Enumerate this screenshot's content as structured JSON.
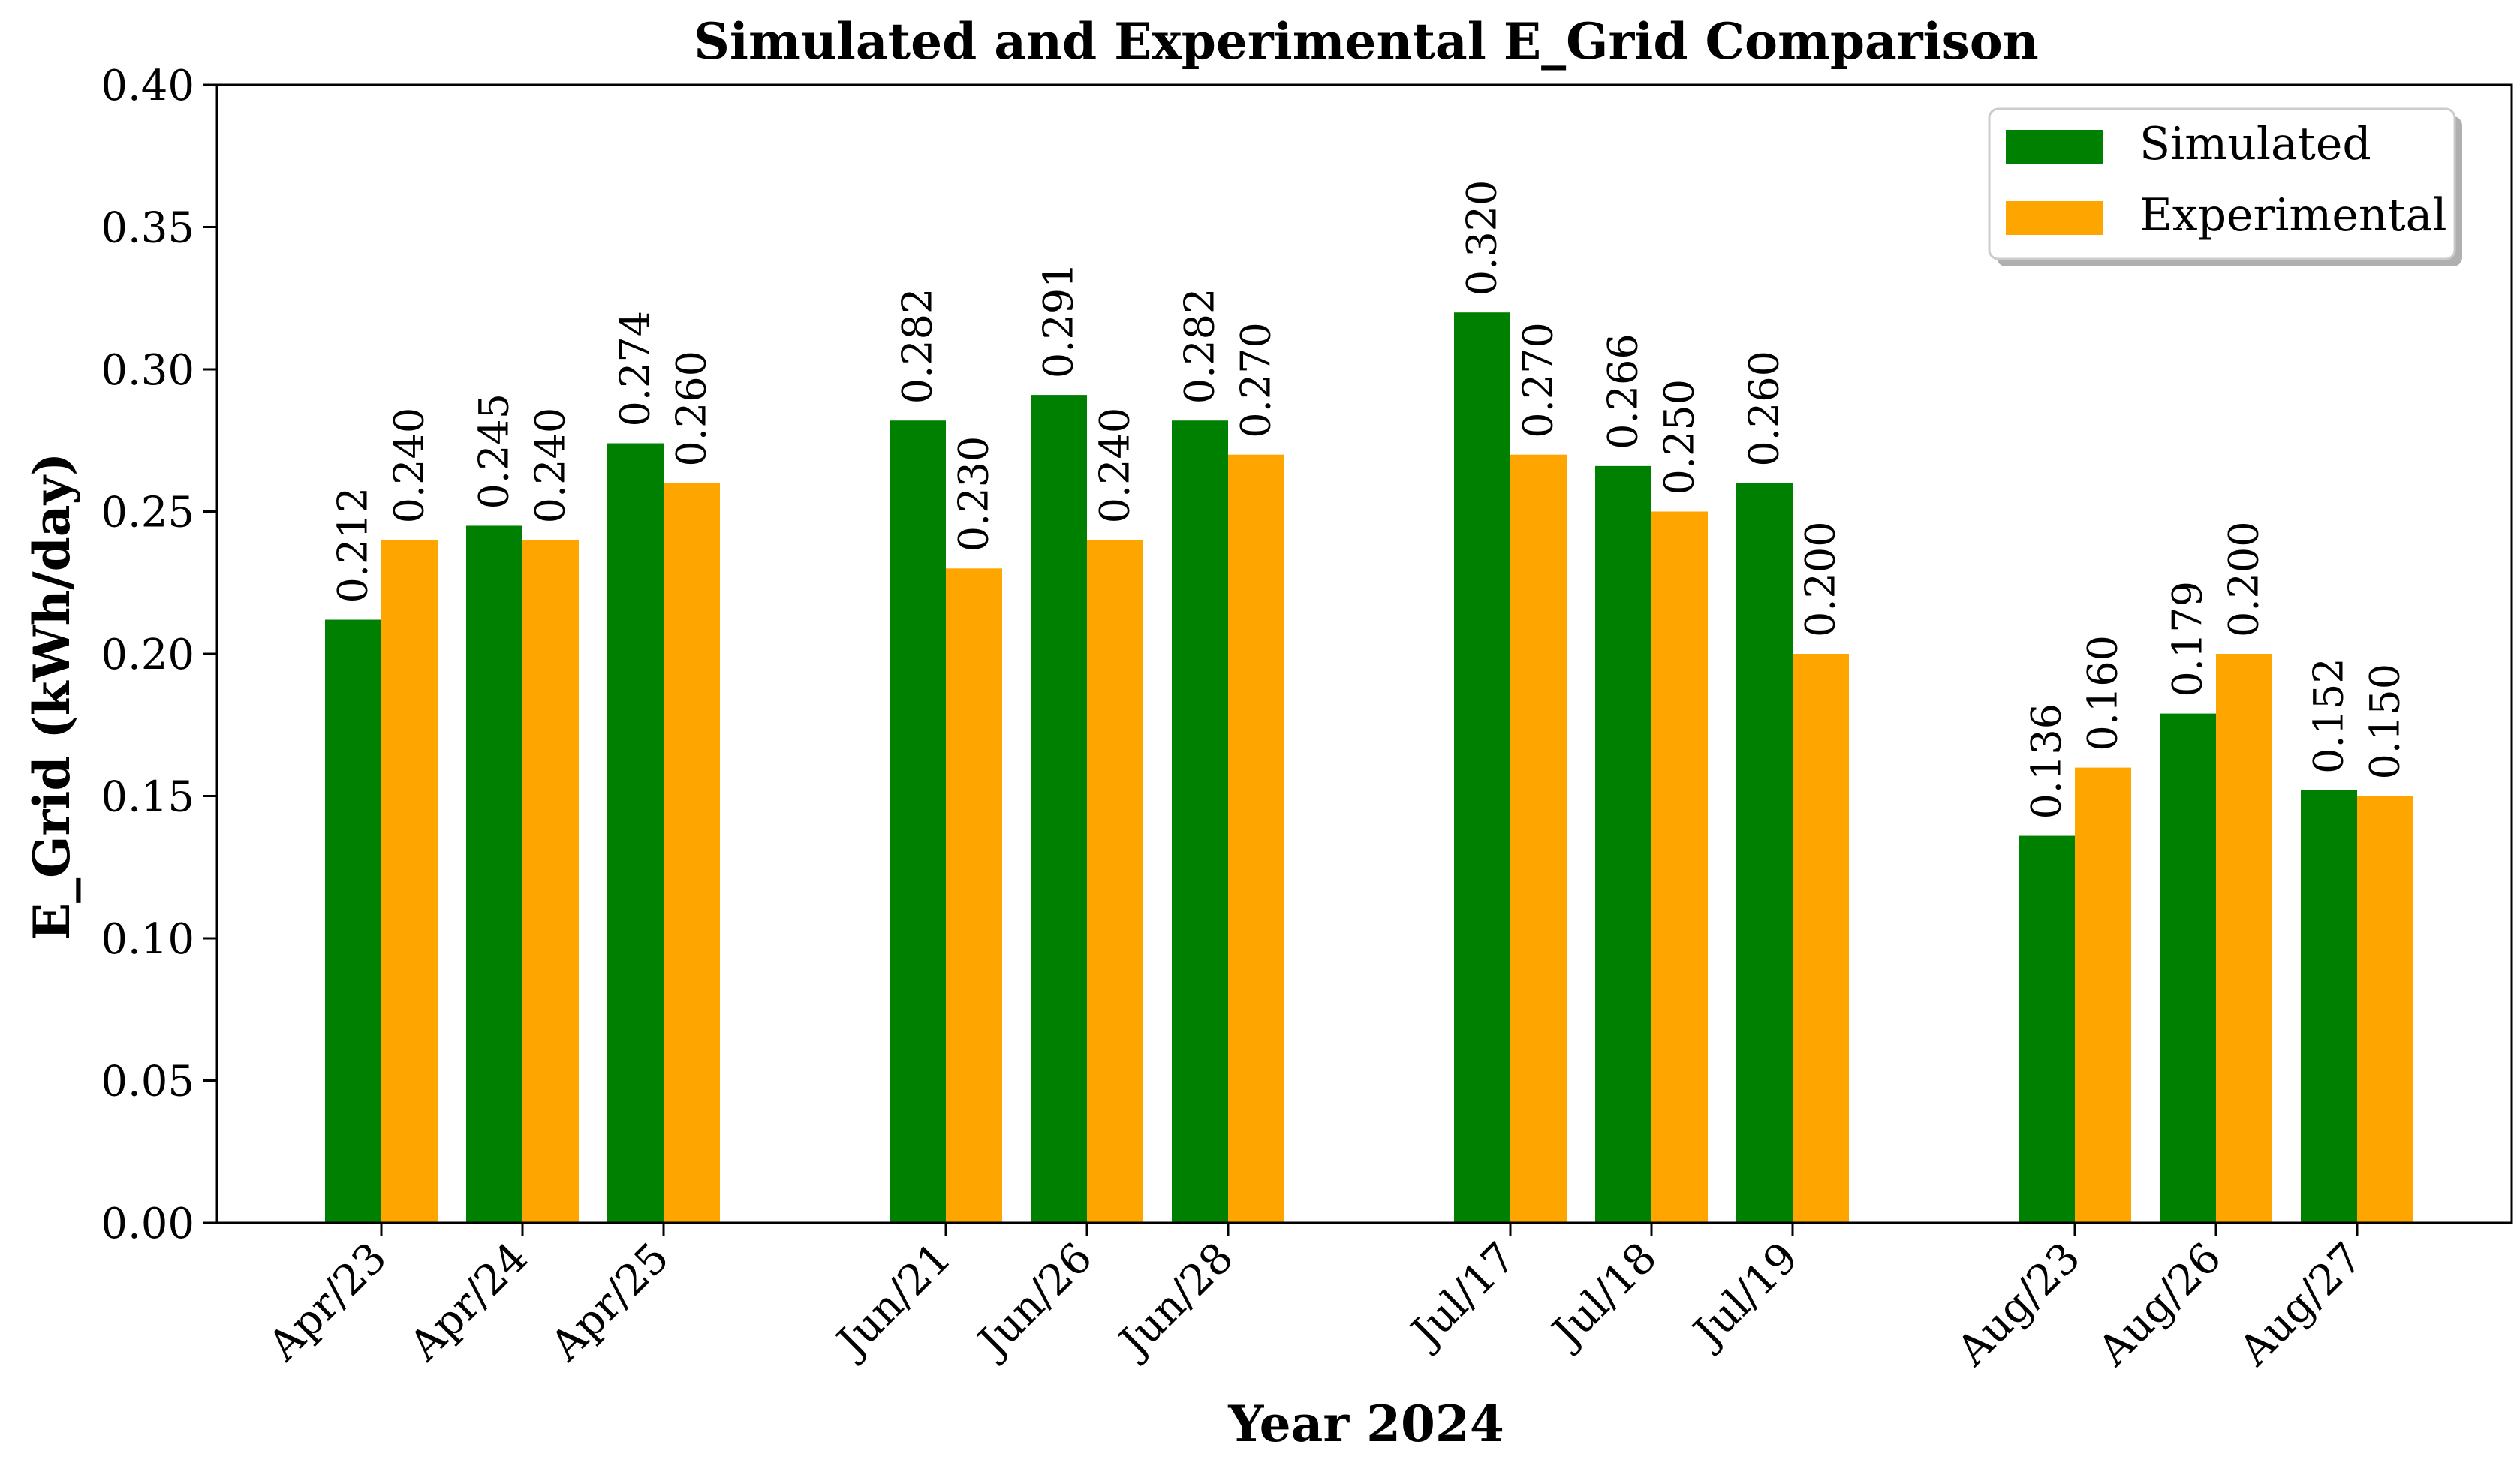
{
  "chart_data": {
    "type": "bar",
    "title": "Simulated and Experimental E_Grid Comparison",
    "xlabel": "Year 2024",
    "ylabel": "E_Grid (kWh/day)",
    "ylim": [
      0,
      0.4
    ],
    "yticks": [
      "0.00",
      "0.05",
      "0.10",
      "0.15",
      "0.20",
      "0.25",
      "0.30",
      "0.35",
      "0.40"
    ],
    "categories": [
      "Apr/23",
      "Apr/24",
      "Apr/25",
      "Jun/21",
      "Jun/26",
      "Jun/28",
      "Jul/17",
      "Jul/18",
      "Jul/19",
      "Aug/23",
      "Aug/26",
      "Aug/27"
    ],
    "series": [
      {
        "name": "Simulated",
        "color": "#008000",
        "values": [
          0.212,
          0.245,
          0.274,
          0.282,
          0.291,
          0.282,
          0.32,
          0.266,
          0.26,
          0.136,
          0.179,
          0.152
        ],
        "labels": [
          "0.212",
          "0.245",
          "0.274",
          "0.282",
          "0.291",
          "0.282",
          "0.320",
          "0.266",
          "0.260",
          "0.136",
          "0.179",
          "0.152"
        ]
      },
      {
        "name": "Experimental",
        "color": "#FFA500",
        "values": [
          0.24,
          0.24,
          0.26,
          0.23,
          0.24,
          0.27,
          0.27,
          0.25,
          0.2,
          0.16,
          0.2,
          0.15
        ],
        "labels": [
          "0.240",
          "0.240",
          "0.260",
          "0.230",
          "0.240",
          "0.270",
          "0.270",
          "0.250",
          "0.200",
          "0.160",
          "0.200",
          "0.150"
        ]
      }
    ],
    "legend_position": "top-right",
    "grid": false
  }
}
